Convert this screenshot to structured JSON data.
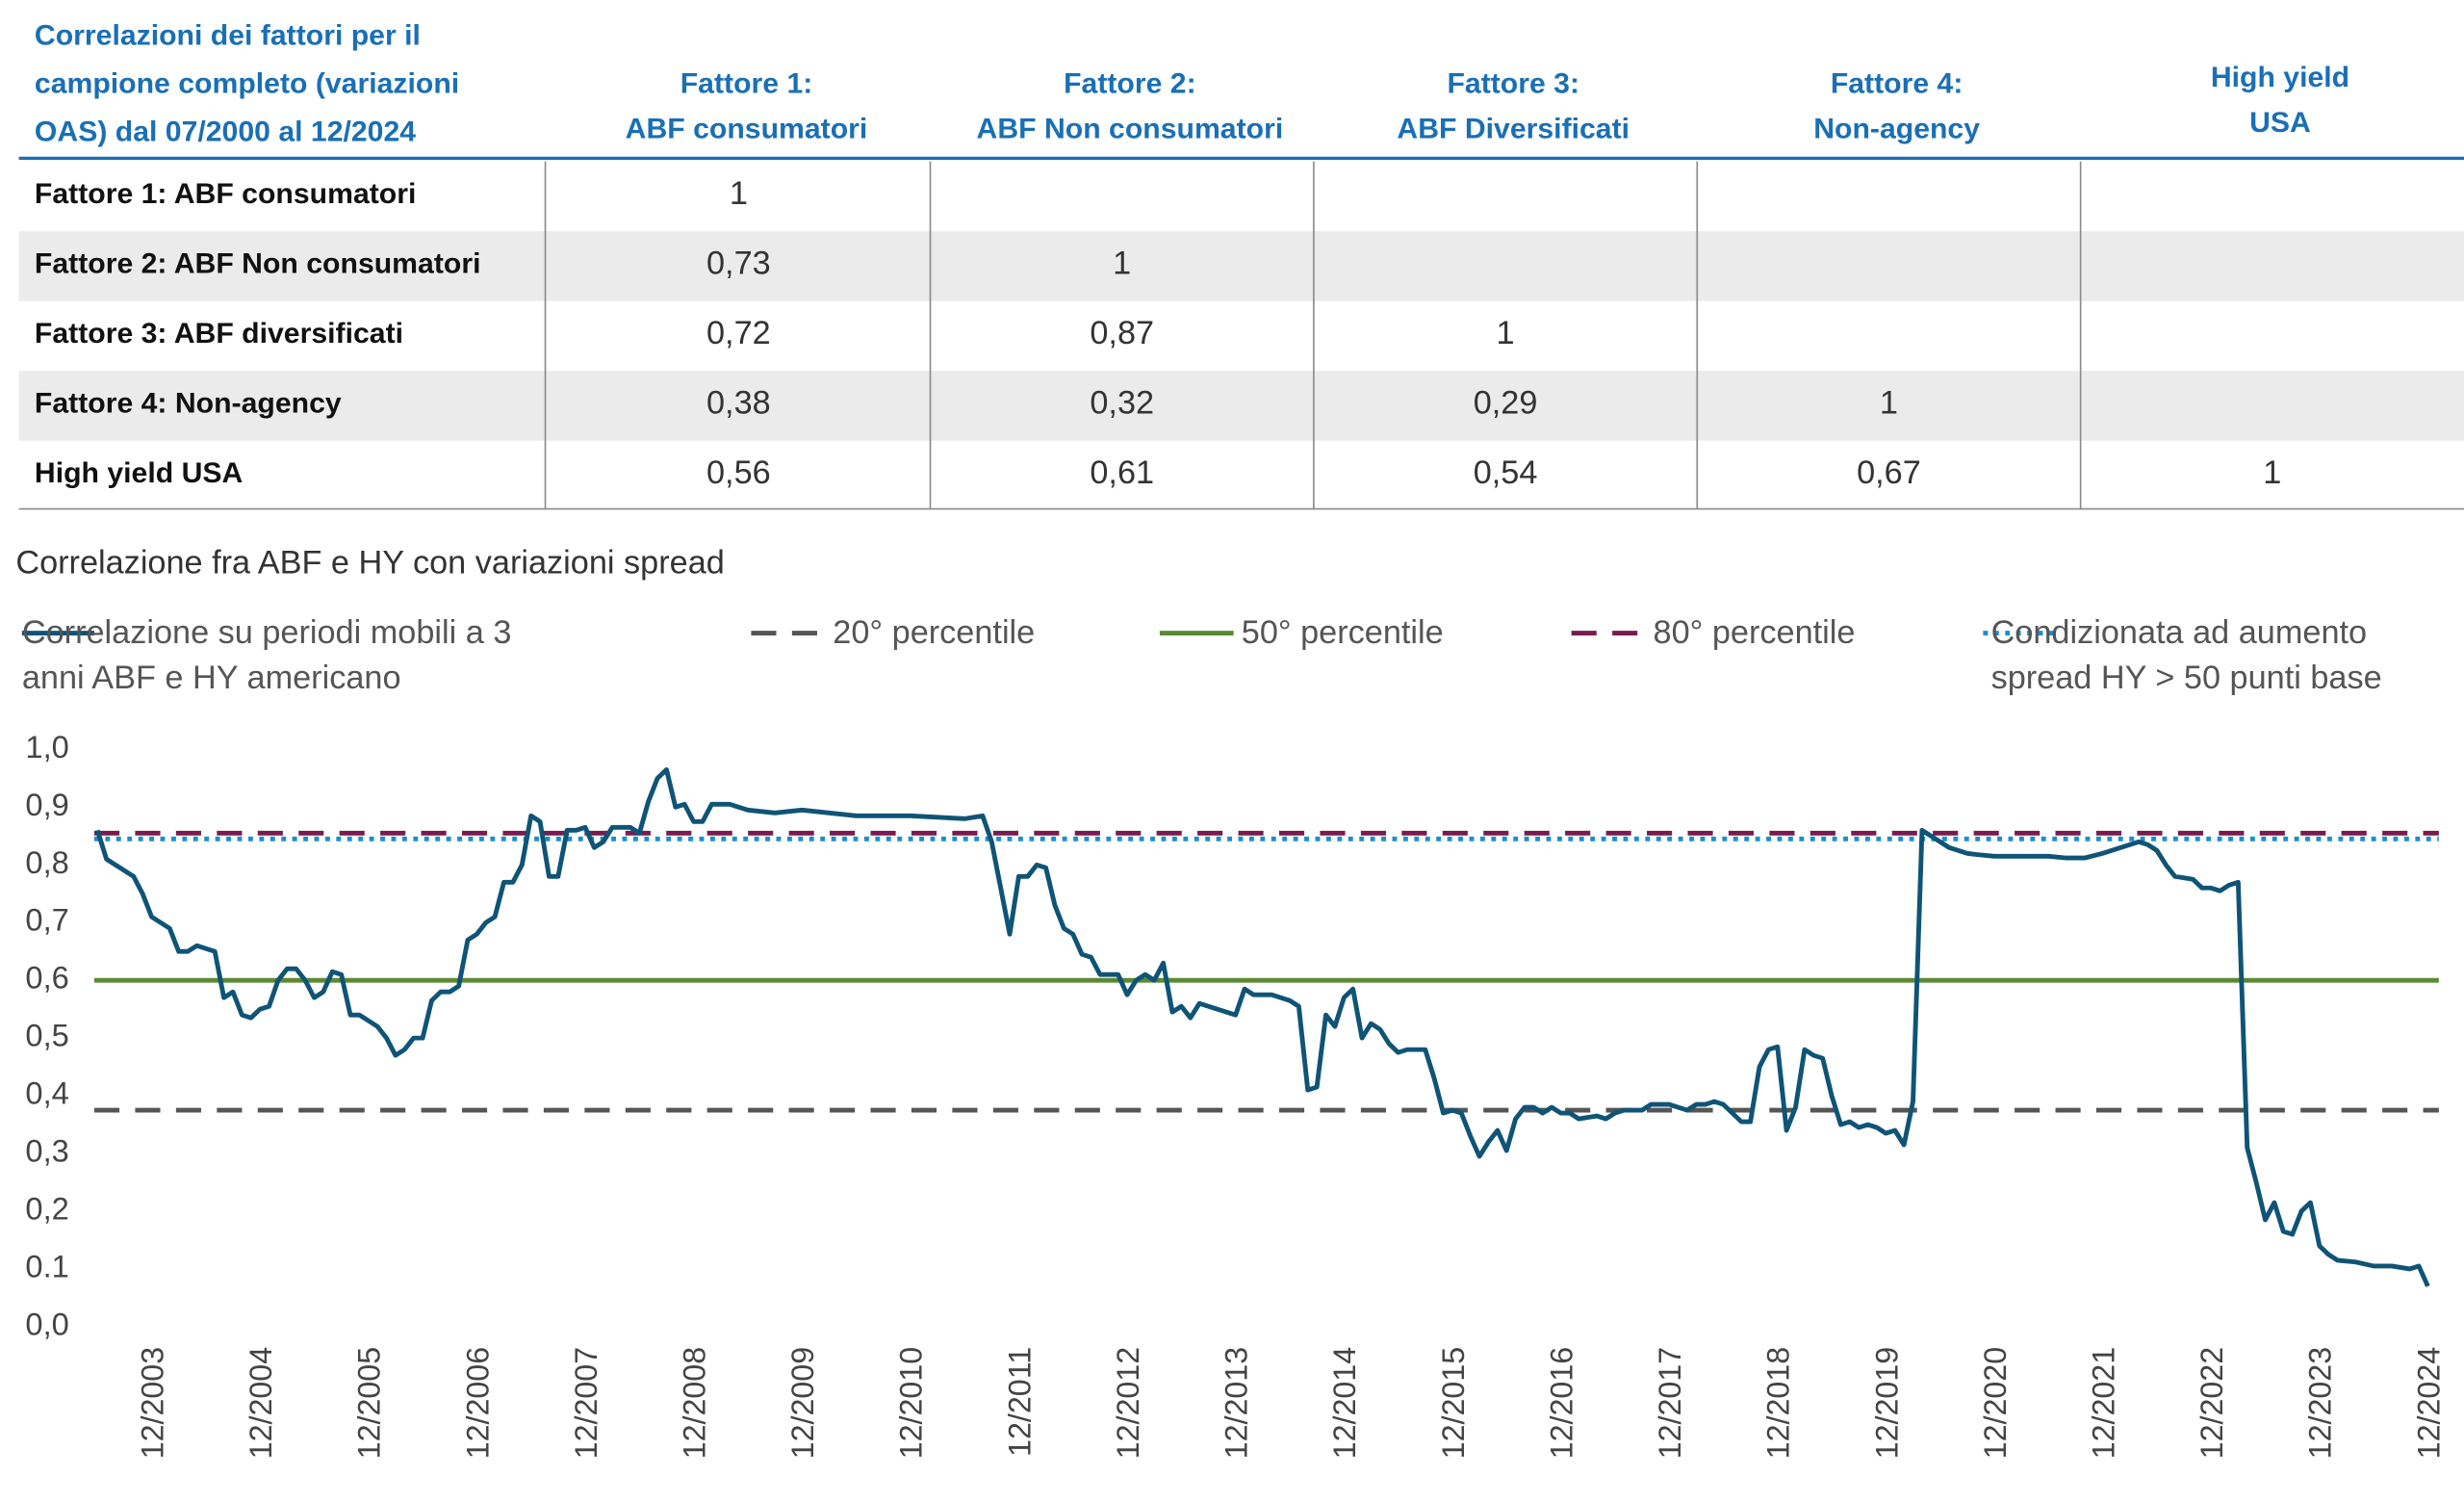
{
  "table": {
    "header": [
      "Correlazioni dei fattori per il\ncampione completo (variazioni\nOAS) dal 07/2000 al 12/2024",
      "Fattore 1:\nABF consumatori",
      "Fattore 2:\nABF Non consumatori",
      "Fattore 3:\nABF Diversificati",
      "Fattore 4:\nNon-agency",
      "High yield\nUSA"
    ],
    "rows": [
      [
        "Fattore 1: ABF consumatori",
        "1",
        null,
        null,
        null,
        null
      ],
      [
        "Fattore 2: ABF Non consumatori",
        "0,73",
        "1",
        null,
        null,
        null
      ],
      [
        "Fattore 3: ABF diversificati",
        "0,72",
        "0,87",
        "1",
        null,
        null
      ],
      [
        "Fattore 4: Non-agency",
        "0,38",
        "0,32",
        "0,29",
        "1",
        null
      ],
      [
        "High yield USA",
        "0,56",
        "0,61",
        "0,54",
        "0,67",
        "1"
      ]
    ]
  },
  "chart_data": {
    "type": "line",
    "title": "Correlazione fra ABF e HY con variazioni spread",
    "x": [
      "06/2003",
      "07/2003",
      "08/2003",
      "09/2003",
      "10/2003",
      "11/2003",
      "12/2003",
      "01/2004",
      "02/2004",
      "03/2004",
      "04/2004",
      "05/2004",
      "07/2004",
      "08/2004",
      "09/2004",
      "10/2004",
      "11/2004",
      "12/2004",
      "01/2005",
      "02/2005",
      "03/2005",
      "04/2005",
      "05/2005",
      "06/2005",
      "07/2005",
      "08/2005",
      "09/2005",
      "10/2005",
      "11/2005",
      "12/2005",
      "01/2006",
      "02/2006",
      "03/2006",
      "04/2006",
      "05/2006",
      "06/2006",
      "07/2006",
      "08/2006",
      "09/2006",
      "10/2006",
      "11/2006",
      "12/2006",
      "01/2007",
      "02/2007",
      "03/2007",
      "04/2007",
      "05/2007",
      "06/2007",
      "07/2007",
      "08/2007",
      "09/2007",
      "10/2007",
      "11/2007",
      "12/2007",
      "01/2008",
      "02/2008",
      "03/2008",
      "05/2008",
      "06/2008",
      "07/2008",
      "08/2008",
      "09/2008",
      "10/2008",
      "11/2008",
      "12/2008",
      "01/2009",
      "02/2009",
      "04/2009",
      "06/2009",
      "09/2009",
      "12/2009",
      "03/2010",
      "06/2010",
      "12/2010",
      "06/2011",
      "08/2011",
      "09/2011",
      "11/2011",
      "12/2011",
      "01/2012",
      "02/2012",
      "03/2012",
      "04/2012",
      "05/2012",
      "06/2012",
      "07/2012",
      "08/2012",
      "09/2012",
      "11/2012",
      "12/2012",
      "01/2013",
      "02/2013",
      "03/2013",
      "04/2013",
      "05/2013",
      "06/2013",
      "07/2013",
      "08/2013",
      "09/2013",
      "10/2013",
      "11/2013",
      "12/2013",
      "01/2014",
      "02/2014",
      "04/2014",
      "05/2014",
      "06/2014",
      "07/2014",
      "08/2014",
      "09/2014",
      "10/2014",
      "11/2014",
      "12/2014",
      "01/2015",
      "02/2015",
      "03/2015",
      "04/2015",
      "05/2015",
      "06/2015",
      "07/2015",
      "09/2015",
      "10/2015",
      "11/2015",
      "12/2015",
      "01/2016",
      "02/2016",
      "03/2016",
      "04/2016",
      "05/2016",
      "06/2016",
      "07/2016",
      "08/2016",
      "09/2016",
      "10/2016",
      "11/2016",
      "12/2016",
      "01/2017",
      "02/2017",
      "04/2017",
      "05/2017",
      "06/2017",
      "07/2017",
      "09/2017",
      "10/2017",
      "12/2017",
      "01/2018",
      "02/2018",
      "03/2018",
      "04/2018",
      "05/2018",
      "06/2018",
      "07/2018",
      "08/2018",
      "09/2018",
      "10/2018",
      "11/2018",
      "12/2018",
      "01/2019",
      "02/2019",
      "03/2019",
      "04/2019",
      "05/2019",
      "06/2019",
      "07/2019",
      "08/2019",
      "09/2019",
      "10/2019",
      "11/2019",
      "12/2019",
      "01/2020",
      "02/2020",
      "03/2020",
      "04/2020",
      "05/2020",
      "06/2020",
      "07/2020",
      "08/2020",
      "09/2020",
      "10/2020",
      "12/2020",
      "02/2021",
      "06/2021",
      "08/2021",
      "10/2021",
      "12/2021",
      "02/2022",
      "03/2022",
      "04/2022",
      "05/2022",
      "06/2022",
      "07/2022",
      "08/2022",
      "10/2022",
      "11/2022",
      "12/2022",
      "01/2023",
      "02/2023",
      "03/2023",
      "04/2023",
      "05/2023",
      "06/2023",
      "07/2023",
      "08/2023",
      "09/2023",
      "10/2023",
      "11/2023",
      "12/2023",
      "01/2024",
      "02/2024",
      "04/2024",
      "06/2024",
      "08/2024",
      "10/2024",
      "11/2024",
      "12/2024"
    ],
    "series": [
      {
        "name": "Correlazione su periodi mobili a 3\nanni ABF e HY americano",
        "color": "#0f5477",
        "values": [
          0.86,
          0.81,
          0.8,
          0.79,
          0.78,
          0.75,
          0.71,
          0.7,
          0.69,
          0.65,
          0.65,
          0.66,
          0.65,
          0.57,
          0.58,
          0.54,
          0.535,
          0.55,
          0.555,
          0.6,
          0.62,
          0.62,
          0.6,
          0.57,
          0.58,
          0.615,
          0.61,
          0.54,
          0.54,
          0.53,
          0.52,
          0.5,
          0.47,
          0.48,
          0.5,
          0.5,
          0.565,
          0.58,
          0.58,
          0.59,
          0.67,
          0.68,
          0.7,
          0.71,
          0.77,
          0.77,
          0.8,
          0.885,
          0.875,
          0.78,
          0.78,
          0.86,
          0.86,
          0.865,
          0.83,
          0.84,
          0.865,
          0.865,
          0.855,
          0.91,
          0.95,
          0.965,
          0.9,
          0.905,
          0.875,
          0.875,
          0.905,
          0.905,
          0.895,
          0.89,
          0.895,
          0.89,
          0.885,
          0.885,
          0.88,
          0.885,
          0.84,
          0.68,
          0.78,
          0.78,
          0.8,
          0.795,
          0.73,
          0.69,
          0.68,
          0.645,
          0.64,
          0.61,
          0.61,
          0.575,
          0.6,
          0.61,
          0.6,
          0.63,
          0.545,
          0.555,
          0.535,
          0.56,
          0.555,
          0.55,
          0.545,
          0.54,
          0.585,
          0.575,
          0.575,
          0.57,
          0.565,
          0.555,
          0.41,
          0.415,
          0.54,
          0.52,
          0.57,
          0.585,
          0.5,
          0.525,
          0.515,
          0.49,
          0.475,
          0.48,
          0.48,
          0.43,
          0.37,
          0.375,
          0.37,
          0.33,
          0.295,
          0.32,
          0.34,
          0.305,
          0.36,
          0.38,
          0.38,
          0.37,
          0.38,
          0.37,
          0.37,
          0.36,
          0.365,
          0.36,
          0.37,
          0.375,
          0.375,
          0.385,
          0.385,
          0.38,
          0.375,
          0.385,
          0.385,
          0.39,
          0.385,
          0.37,
          0.355,
          0.355,
          0.45,
          0.48,
          0.485,
          0.34,
          0.38,
          0.48,
          0.47,
          0.465,
          0.4,
          0.35,
          0.355,
          0.345,
          0.35,
          0.345,
          0.335,
          0.34,
          0.315,
          0.39,
          0.86,
          0.85,
          0.84,
          0.83,
          0.825,
          0.82,
          0.818,
          0.815,
          0.815,
          0.815,
          0.812,
          0.812,
          0.82,
          0.83,
          0.835,
          0.84,
          0.835,
          0.825,
          0.8,
          0.78,
          0.775,
          0.76,
          0.76,
          0.755,
          0.765,
          0.77,
          0.31,
          0.25,
          0.185,
          0.215,
          0.165,
          0.16,
          0.2,
          0.215,
          0.14,
          0.125,
          0.115,
          0.112,
          0.105,
          0.105,
          0.1,
          0.105,
          0.07
        ]
      }
    ],
    "reference_lines": [
      {
        "name": "20° percentile",
        "value": 0.375,
        "color": "#555555",
        "style": "dashed"
      },
      {
        "name": "50° percentile",
        "value": 0.6,
        "color": "#5b8a32",
        "style": "solid"
      },
      {
        "name": "80° percentile",
        "value": 0.855,
        "color": "#7a1a4f",
        "style": "dashed"
      },
      {
        "name": "Condizionata ad aumento\nspread HY > 50 punti base",
        "value": 0.845,
        "color": "#1a8fd0",
        "style": "dotted"
      }
    ],
    "xlim": [
      "06/2003",
      "12/2024"
    ],
    "xticks": [
      "12/2003",
      "12/2004",
      "12/2005",
      "12/2006",
      "12/2007",
      "12/2008",
      "12/2009",
      "12/2010",
      "12/2011",
      "12/2012",
      "12/2013",
      "12/2014",
      "12/2015",
      "12/2016",
      "12/2017",
      "12/2018",
      "12/2019",
      "12/2020",
      "12/2021",
      "12/2022",
      "12/2023",
      "12/2024"
    ],
    "ylim": [
      0,
      1
    ],
    "yticks": [
      {
        "value": 0,
        "label": "0,0"
      },
      {
        "value": 0.1,
        "label": "0.1"
      },
      {
        "value": 0.2,
        "label": "0,2"
      },
      {
        "value": 0.3,
        "label": "0,3"
      },
      {
        "value": 0.4,
        "label": "0,4"
      },
      {
        "value": 0.5,
        "label": "0,5"
      },
      {
        "value": 0.6,
        "label": "0,6"
      },
      {
        "value": 0.7,
        "label": "0,7"
      },
      {
        "value": 0.8,
        "label": "0,8"
      },
      {
        "value": 0.9,
        "label": "0,9"
      },
      {
        "value": 1,
        "label": "1,0"
      }
    ],
    "grid": false
  }
}
